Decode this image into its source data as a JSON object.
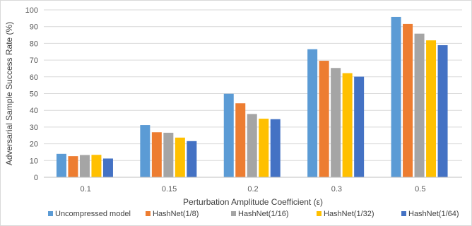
{
  "chart_data": {
    "type": "bar",
    "title": "",
    "xlabel": "Perturbation Amplitude Coefficient (ε)",
    "ylabel": "Adversarial Sample Success Rate (%)",
    "categories": [
      "0.1",
      "0.15",
      "0.2",
      "0.3",
      "0.5"
    ],
    "ylim": [
      0,
      100
    ],
    "yticks": [
      0,
      10,
      20,
      30,
      40,
      50,
      60,
      70,
      80,
      90,
      100
    ],
    "grid": true,
    "legend_position": "bottom",
    "series": [
      {
        "name": "Uncompressed model",
        "color": "#5b9bd5",
        "values": [
          14.0,
          31.2,
          49.9,
          76.5,
          95.8
        ]
      },
      {
        "name": "HashNet(1/8)",
        "color": "#ed7d31",
        "values": [
          12.6,
          26.9,
          44.2,
          69.6,
          91.6
        ]
      },
      {
        "name": "HashNet(1/16)",
        "color": "#a5a5a5",
        "values": [
          13.3,
          26.6,
          37.8,
          65.3,
          85.8
        ]
      },
      {
        "name": "HashNet(1/32)",
        "color": "#ffc000",
        "values": [
          13.4,
          23.7,
          35.0,
          62.2,
          81.8
        ]
      },
      {
        "name": "HashNet(1/64)",
        "color": "#4472c4",
        "values": [
          11.2,
          21.6,
          34.7,
          60.1,
          78.9
        ]
      }
    ]
  }
}
